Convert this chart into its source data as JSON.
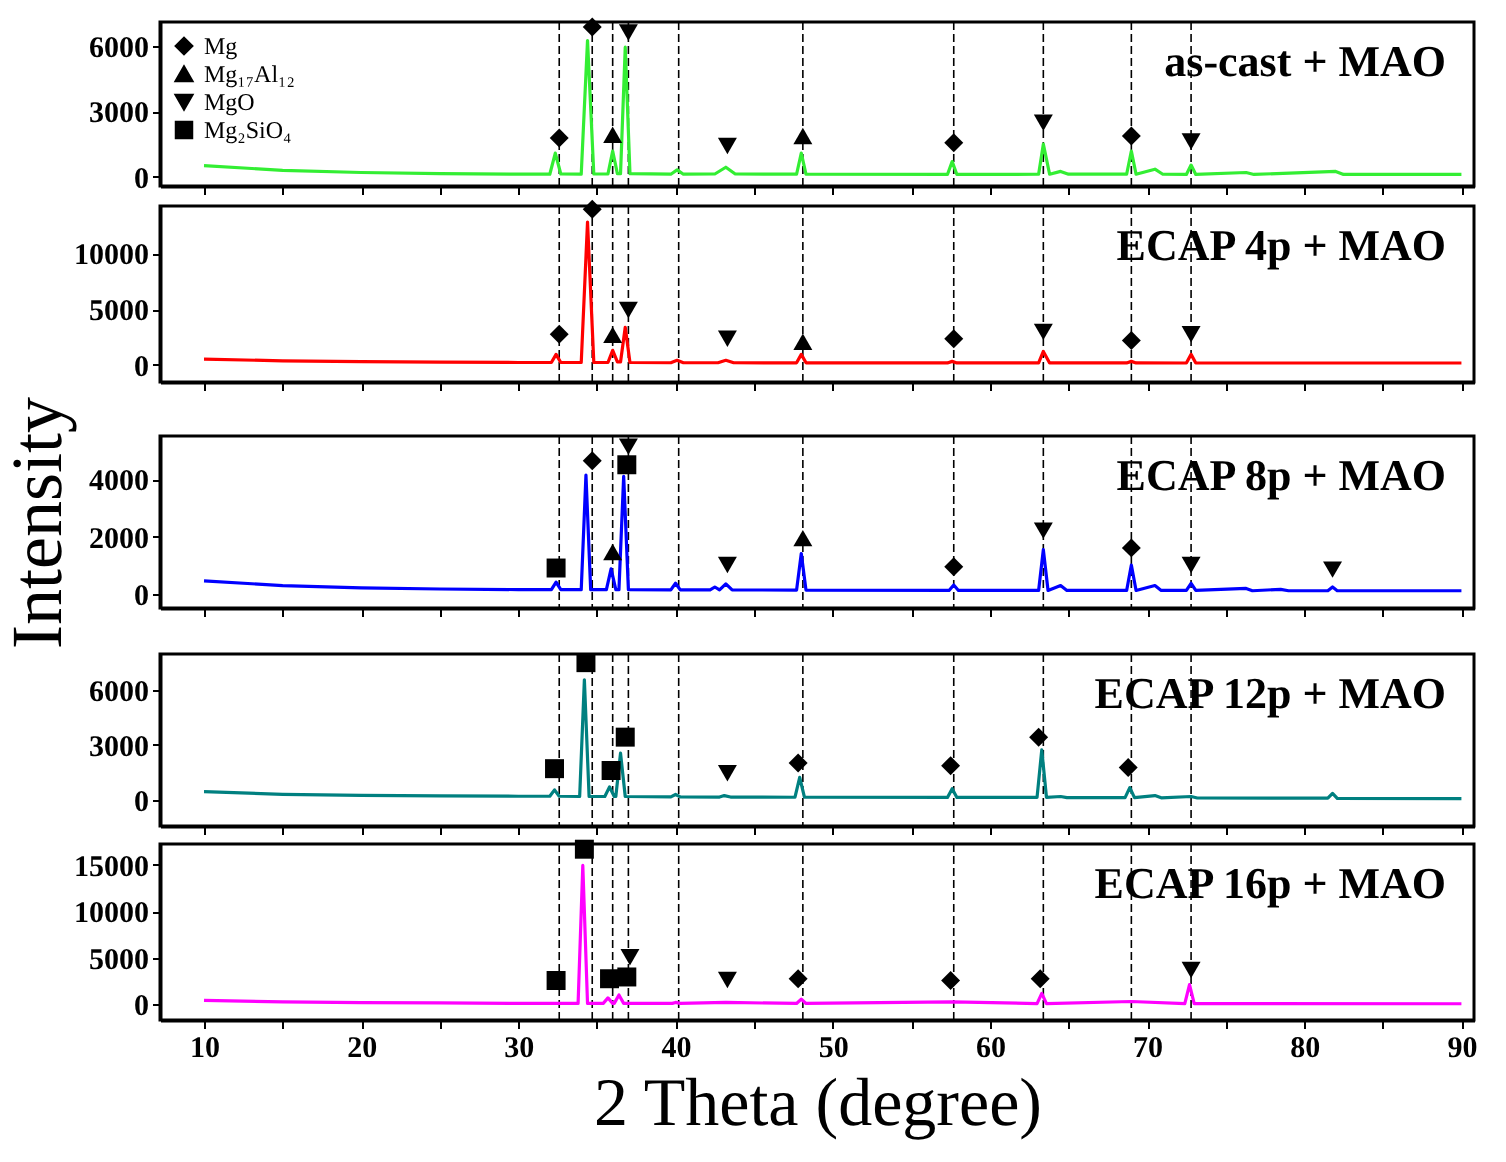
{
  "chart_data": [
    {
      "type": "line",
      "annotations": [
        "as-cast + MAO"
      ],
      "legend": "top left",
      "tick_labels": "y",
      "grid": false,
      "xlim": [
        7.2,
        90.8
      ],
      "xticks": [
        10,
        {
          "value": 15,
          "label": null
        },
        20,
        {
          "value": 25,
          "label": null
        },
        30,
        {
          "value": 35,
          "label": null
        },
        40,
        {
          "value": 45,
          "label": null
        },
        50,
        {
          "value": 55,
          "label": null
        },
        60,
        {
          "value": 65,
          "label": null
        },
        70,
        {
          "value": 75,
          "label": null
        },
        80,
        {
          "value": 85,
          "label": null
        },
        90
      ],
      "ylim": [
        -420,
        7100
      ],
      "yticks": [
        0,
        3000,
        6000
      ],
      "ref_lines": [
        {
          "axis": "x",
          "value": 32.6,
          "color": "#000000",
          "line_style": "dashed"
        },
        {
          "axis": "x",
          "value": 34.7,
          "color": "#000000",
          "line_style": "dashed"
        },
        {
          "axis": "x",
          "value": 36.0,
          "color": "#000000",
          "line_style": "dashed"
        },
        {
          "axis": "x",
          "value": 37.0,
          "color": "#000000",
          "line_style": "dashed"
        },
        {
          "axis": "x",
          "value": 40.2,
          "color": "#000000",
          "line_style": "dashed"
        },
        {
          "axis": "x",
          "value": 48.1,
          "color": "#000000",
          "line_style": "dashed"
        },
        {
          "axis": "x",
          "value": 57.7,
          "color": "#000000",
          "line_style": "dashed"
        },
        {
          "axis": "x",
          "value": 63.4,
          "color": "#000000",
          "line_style": "dashed"
        },
        {
          "axis": "x",
          "value": 69.0,
          "color": "#000000",
          "line_style": "dashed"
        },
        {
          "axis": "x",
          "value": 72.8,
          "color": "#000000",
          "line_style": "dashed"
        }
      ],
      "series": [
        {
          "color": "#33ee33",
          "x": [
            10,
            15,
            20,
            25,
            30,
            32.0,
            32.35,
            32.7,
            34.0,
            34.4,
            34.8,
            35.7,
            36.0,
            36.3,
            36.5,
            36.8,
            37.1,
            39.7,
            40.1,
            40.5,
            42.5,
            43.2,
            43.8,
            47.7,
            48.0,
            48.3,
            57.3,
            57.6,
            57.9,
            63.1,
            63.4,
            63.8,
            64.5,
            65,
            68.7,
            69.0,
            69.3,
            70.5,
            71,
            72.5,
            72.8,
            73.1,
            76.3,
            76.8,
            82,
            82.5,
            90
          ],
          "values": [
            510,
            300,
            200,
            150,
            120,
            120,
            1090,
            130,
            120,
            6250,
            130,
            130,
            1185,
            150,
            150,
            5945,
            150,
            120,
            320,
            120,
            130,
            440,
            130,
            120,
            1090,
            120,
            110,
            700,
            110,
            120,
            1500,
            120,
            250,
            120,
            120,
            1185,
            120,
            350,
            120,
            110,
            540,
            110,
            200,
            110,
            250,
            110,
            110
          ]
        },
        {
          "type": "scatter",
          "name": "Mg",
          "marker": "diamond",
          "color": "#000000",
          "x": [
            32.6,
            34.7,
            57.7,
            69.0
          ],
          "values": [
            1780,
            6870,
            1560,
            1870
          ]
        },
        {
          "type": "scatter",
          "name": "Mg₁₇Al₁₂",
          "marker": "triangle",
          "color": "#000000",
          "x": [
            36.0,
            48.1
          ],
          "values": [
            1930,
            1870
          ]
        },
        {
          "type": "scatter",
          "name": "MgO",
          "marker": "triangle-down",
          "color": "#000000",
          "x": [
            37.0,
            43.3,
            63.4,
            72.8
          ],
          "values": [
            6620,
            1410,
            2480,
            1620
          ]
        },
        {
          "type": "scatter",
          "name": "Mg₂SiO₄",
          "marker": "square",
          "color": "#000000"
        }
      ]
    },
    {
      "type": "line",
      "annotations": [
        "ECAP 4p + MAO"
      ],
      "tick_labels": "y",
      "grid": false,
      "xlim": [
        7.2,
        90.8
      ],
      "xticks": [
        10,
        {
          "value": 15,
          "label": null
        },
        20,
        {
          "value": 25,
          "label": null
        },
        30,
        {
          "value": 35,
          "label": null
        },
        40,
        {
          "value": 45,
          "label": null
        },
        50,
        {
          "value": 55,
          "label": null
        },
        60,
        {
          "value": 65,
          "label": null
        },
        70,
        {
          "value": 75,
          "label": null
        },
        80,
        {
          "value": 85,
          "label": null
        },
        90
      ],
      "ylim": [
        -1550,
        14250
      ],
      "yticks": [
        0,
        5000,
        10000
      ],
      "ref_lines": [
        {
          "axis": "x",
          "value": 32.6,
          "color": "#000000",
          "line_style": "dashed"
        },
        {
          "axis": "x",
          "value": 34.7,
          "color": "#000000",
          "line_style": "dashed"
        },
        {
          "axis": "x",
          "value": 36.0,
          "color": "#000000",
          "line_style": "dashed"
        },
        {
          "axis": "x",
          "value": 37.0,
          "color": "#000000",
          "line_style": "dashed"
        },
        {
          "axis": "x",
          "value": 40.2,
          "color": "#000000",
          "line_style": "dashed"
        },
        {
          "axis": "x",
          "value": 48.1,
          "color": "#000000",
          "line_style": "dashed"
        },
        {
          "axis": "x",
          "value": 57.7,
          "color": "#000000",
          "line_style": "dashed"
        },
        {
          "axis": "x",
          "value": 63.4,
          "color": "#000000",
          "line_style": "dashed"
        },
        {
          "axis": "x",
          "value": 69.0,
          "color": "#000000",
          "line_style": "dashed"
        },
        {
          "axis": "x",
          "value": 72.8,
          "color": "#000000",
          "line_style": "dashed"
        }
      ],
      "series": [
        {
          "color": "#ff0000",
          "x": [
            10,
            15,
            20,
            25,
            30,
            32.1,
            32.4,
            32.7,
            34.0,
            34.4,
            34.8,
            35.7,
            36.0,
            36.3,
            36.5,
            36.8,
            37.1,
            39.7,
            40.1,
            40.5,
            42.7,
            43.2,
            43.7,
            47.7,
            48.0,
            48.3,
            57.3,
            57.6,
            57.9,
            63.1,
            63.4,
            63.8,
            68.7,
            69.0,
            69.3,
            72.5,
            72.8,
            73.1,
            90
          ],
          "values": [
            510,
            350,
            280,
            230,
            200,
            200,
            930,
            200,
            200,
            12800,
            200,
            200,
            1290,
            250,
            250,
            3360,
            200,
            180,
            400,
            180,
            180,
            400,
            180,
            170,
            930,
            170,
            160,
            300,
            160,
            160,
            1190,
            160,
            160,
            300,
            160,
            155,
            930,
            155,
            155
          ]
        },
        {
          "type": "scatter",
          "marker": "diamond",
          "color": "#000000",
          "x": [
            32.6,
            34.7,
            57.7,
            69.0
          ],
          "values": [
            2740,
            13950,
            2330,
            2170
          ]
        },
        {
          "type": "scatter",
          "marker": "triangle",
          "color": "#000000",
          "x": [
            36.0,
            48.1
          ],
          "values": [
            2680,
            2060
          ]
        },
        {
          "type": "scatter",
          "marker": "triangle-down",
          "color": "#000000",
          "x": [
            37.0,
            43.3,
            63.4,
            72.8
          ],
          "values": [
            4910,
            2330,
            2950,
            2740
          ]
        }
      ]
    },
    {
      "type": "line",
      "annotations": [
        "ECAP 8p + MAO"
      ],
      "ylabel": "Intensity",
      "tick_labels": "y",
      "grid": false,
      "xlim": [
        7.2,
        90.8
      ],
      "xticks": [
        10,
        {
          "value": 15,
          "label": null
        },
        20,
        {
          "value": 25,
          "label": null
        },
        30,
        {
          "value": 35,
          "label": null
        },
        40,
        {
          "value": 45,
          "label": null
        },
        50,
        {
          "value": 55,
          "label": null
        },
        60,
        {
          "value": 65,
          "label": null
        },
        70,
        {
          "value": 75,
          "label": null
        },
        80,
        {
          "value": 85,
          "label": null
        },
        90
      ],
      "ylim": [
        -480,
        5500
      ],
      "yticks": [
        0,
        2000,
        4000
      ],
      "ref_lines": [
        {
          "axis": "x",
          "value": 32.6,
          "color": "#000000",
          "line_style": "dashed"
        },
        {
          "axis": "x",
          "value": 34.7,
          "color": "#000000",
          "line_style": "dashed"
        },
        {
          "axis": "x",
          "value": 36.0,
          "color": "#000000",
          "line_style": "dashed"
        },
        {
          "axis": "x",
          "value": 37.0,
          "color": "#000000",
          "line_style": "dashed"
        },
        {
          "axis": "x",
          "value": 40.2,
          "color": "#000000",
          "line_style": "dashed"
        },
        {
          "axis": "x",
          "value": 48.1,
          "color": "#000000",
          "line_style": "dashed"
        },
        {
          "axis": "x",
          "value": 57.7,
          "color": "#000000",
          "line_style": "dashed"
        },
        {
          "axis": "x",
          "value": 63.4,
          "color": "#000000",
          "line_style": "dashed"
        },
        {
          "axis": "x",
          "value": 69.0,
          "color": "#000000",
          "line_style": "dashed"
        },
        {
          "axis": "x",
          "value": 72.8,
          "color": "#000000",
          "line_style": "dashed"
        }
      ],
      "series": [
        {
          "color": "#0000ff",
          "x": [
            10,
            15,
            20,
            25,
            30,
            32.1,
            32.4,
            32.7,
            34.0,
            34.3,
            34.6,
            35.6,
            35.9,
            36.2,
            36.4,
            36.7,
            37.0,
            39.7,
            40.0,
            40.3,
            42.2,
            42.5,
            42.8,
            43.2,
            43.6,
            47.7,
            48.0,
            48.3,
            57.4,
            57.7,
            58.0,
            63.1,
            63.4,
            63.7,
            64.5,
            64.9,
            68.7,
            69.0,
            69.3,
            70.5,
            70.9,
            72.5,
            72.8,
            73.1,
            76.3,
            76.7,
            78.5,
            79,
            81.5,
            81.8,
            82.1,
            90
          ],
          "values": [
            460,
            300,
            220,
            180,
            160,
            160,
            420,
            160,
            160,
            4140,
            160,
            160,
            880,
            160,
            160,
            4100,
            160,
            150,
            380,
            150,
            150,
            250,
            150,
            360,
            150,
            140,
            1415,
            140,
            130,
            320,
            130,
            130,
            1550,
            130,
            300,
            130,
            130,
            1015,
            130,
            300,
            130,
            130,
            380,
            130,
            200,
            120,
            170,
            120,
            120,
            250,
            120,
            120
          ]
        },
        {
          "type": "scatter",
          "marker": "diamond",
          "color": "#000000",
          "x": [
            34.7,
            57.7,
            69.0
          ],
          "values": [
            4640,
            955,
            1610
          ]
        },
        {
          "type": "scatter",
          "marker": "triangle",
          "color": "#000000",
          "x": [
            36.0,
            48.1
          ],
          "values": [
            1470,
            1950
          ]
        },
        {
          "type": "scatter",
          "marker": "triangle-down",
          "color": "#000000",
          "x": [
            37.0,
            43.3,
            63.4,
            72.8,
            81.8
          ],
          "values": [
            5130,
            1015,
            2210,
            1015,
            855
          ]
        },
        {
          "type": "scatter",
          "marker": "square",
          "color": "#000000",
          "x": [
            32.4,
            36.9
          ],
          "values": [
            910,
            4500
          ]
        }
      ]
    },
    {
      "type": "line",
      "annotations": [
        "ECAP 12p + MAO"
      ],
      "tick_labels": "y",
      "grid": false,
      "xlim": [
        7.2,
        90.8
      ],
      "xticks": [
        10,
        {
          "value": 15,
          "label": null
        },
        20,
        {
          "value": 25,
          "label": null
        },
        30,
        {
          "value": 35,
          "label": null
        },
        40,
        {
          "value": 45,
          "label": null
        },
        50,
        {
          "value": 55,
          "label": null
        },
        60,
        {
          "value": 65,
          "label": null
        },
        70,
        {
          "value": 75,
          "label": null
        },
        80,
        {
          "value": 85,
          "label": null
        },
        90
      ],
      "ylim": [
        -1400,
        7930
      ],
      "yticks": [
        0,
        3000,
        6000
      ],
      "ref_lines": [
        {
          "axis": "x",
          "value": 32.6,
          "color": "#000000",
          "line_style": "dashed"
        },
        {
          "axis": "x",
          "value": 34.7,
          "color": "#000000",
          "line_style": "dashed"
        },
        {
          "axis": "x",
          "value": 36.0,
          "color": "#000000",
          "line_style": "dashed"
        },
        {
          "axis": "x",
          "value": 37.0,
          "color": "#000000",
          "line_style": "dashed"
        },
        {
          "axis": "x",
          "value": 40.2,
          "color": "#000000",
          "line_style": "dashed"
        },
        {
          "axis": "x",
          "value": 48.1,
          "color": "#000000",
          "line_style": "dashed"
        },
        {
          "axis": "x",
          "value": 57.7,
          "color": "#000000",
          "line_style": "dashed"
        },
        {
          "axis": "x",
          "value": 63.4,
          "color": "#000000",
          "line_style": "dashed"
        },
        {
          "axis": "x",
          "value": 69.0,
          "color": "#000000",
          "line_style": "dashed"
        },
        {
          "axis": "x",
          "value": 72.8,
          "color": "#000000",
          "line_style": "dashed"
        }
      ],
      "series": [
        {
          "color": "#008080",
          "x": [
            10,
            15,
            20,
            25,
            30,
            32.0,
            32.3,
            32.6,
            33.9,
            34.2,
            34.5,
            35.5,
            35.8,
            36.1,
            36.2,
            36.5,
            36.8,
            39.7,
            40.0,
            40.3,
            42.8,
            43.1,
            43.5,
            47.6,
            47.9,
            48.2,
            57.3,
            57.6,
            57.9,
            63.0,
            63.3,
            63.6,
            64.5,
            64.9,
            68.6,
            68.9,
            69.2,
            70.5,
            70.9,
            72.8,
            73.2,
            81.5,
            81.8,
            82.1,
            90
          ],
          "values": [
            470,
            320,
            260,
            230,
            215,
            215,
            560,
            215,
            200,
            6530,
            200,
            200,
            720,
            200,
            200,
            2550,
            200,
            180,
            310,
            180,
            170,
            250,
            170,
            160,
            1240,
            160,
            150,
            620,
            150,
            150,
            2730,
            150,
            200,
            140,
            140,
            680,
            140,
            250,
            130,
            200,
            120,
            110,
            370,
            100,
            90
          ]
        },
        {
          "type": "scatter",
          "marker": "diamond",
          "color": "#000000",
          "x": [
            47.8,
            57.5,
            63.1,
            68.8
          ],
          "values": [
            2020,
            1870,
            3420,
            1770
          ]
        },
        {
          "type": "scatter",
          "marker": "triangle-down",
          "color": "#000000",
          "x": [
            43.3
          ],
          "values": [
            1460
          ]
        },
        {
          "type": "scatter",
          "marker": "square",
          "color": "#000000",
          "x": [
            32.3,
            34.3,
            35.9,
            36.8
          ],
          "values": [
            1710,
            7460,
            1610,
            3420
          ]
        }
      ]
    },
    {
      "type": "line",
      "annotations": [
        "ECAP 16p + MAO"
      ],
      "xlabel": "2 Theta (degree)",
      "grid": false,
      "xlim": [
        7.2,
        90.8
      ],
      "xticks": [
        10,
        {
          "value": 15,
          "label": null
        },
        20,
        {
          "value": 25,
          "label": null
        },
        30,
        {
          "value": 35,
          "label": null
        },
        40,
        {
          "value": 45,
          "label": null
        },
        50,
        {
          "value": 55,
          "label": null
        },
        60,
        {
          "value": 65,
          "label": null
        },
        70,
        {
          "value": 75,
          "label": null
        },
        80,
        {
          "value": 85,
          "label": null
        },
        90
      ],
      "ylim": [
        -1690,
        17250
      ],
      "yticks": [
        0,
        5000,
        10000,
        15000
      ],
      "ref_lines": [
        {
          "axis": "x",
          "value": 32.6,
          "color": "#000000",
          "line_style": "dashed"
        },
        {
          "axis": "x",
          "value": 34.7,
          "color": "#000000",
          "line_style": "dashed"
        },
        {
          "axis": "x",
          "value": 36.0,
          "color": "#000000",
          "line_style": "dashed"
        },
        {
          "axis": "x",
          "value": 37.0,
          "color": "#000000",
          "line_style": "dashed"
        },
        {
          "axis": "x",
          "value": 40.2,
          "color": "#000000",
          "line_style": "dashed"
        },
        {
          "axis": "x",
          "value": 48.1,
          "color": "#000000",
          "line_style": "dashed"
        },
        {
          "axis": "x",
          "value": 57.7,
          "color": "#000000",
          "line_style": "dashed"
        },
        {
          "axis": "x",
          "value": 63.4,
          "color": "#000000",
          "line_style": "dashed"
        },
        {
          "axis": "x",
          "value": 69.0,
          "color": "#000000",
          "line_style": "dashed"
        },
        {
          "axis": "x",
          "value": 72.8,
          "color": "#000000",
          "line_style": "dashed"
        }
      ],
      "series": [
        {
          "color": "#ff00ff",
          "x": [
            10,
            15,
            20,
            25,
            30,
            33.8,
            34.1,
            34.4,
            35.4,
            35.7,
            36.0,
            36.1,
            36.4,
            36.7,
            39.8,
            40.0,
            40.3,
            43.2,
            47.7,
            48.0,
            48.3,
            57.6,
            63.0,
            63.3,
            63.6,
            69.0,
            72.4,
            72.7,
            73.0,
            90
          ],
          "values": [
            430,
            250,
            180,
            150,
            100,
            100,
            14940,
            100,
            100,
            690,
            100,
            100,
            1000,
            100,
            100,
            200,
            100,
            200,
            90,
            560,
            90,
            250,
            80,
            1180,
            80,
            300,
            70,
            2120,
            70,
            60
          ]
        },
        {
          "type": "scatter",
          "marker": "diamond",
          "color": "#000000",
          "x": [
            47.8,
            57.5,
            63.2
          ],
          "values": [
            2750,
            2560,
            2750
          ]
        },
        {
          "type": "scatter",
          "marker": "triangle-down",
          "color": "#000000",
          "x": [
            37.1,
            43.3,
            72.8
          ],
          "values": [
            5060,
            2620,
            3690
          ]
        },
        {
          "type": "scatter",
          "marker": "square",
          "color": "#000000",
          "x": [
            32.4,
            34.2,
            35.8,
            36.9
          ],
          "values": [
            2560,
            16690,
            2750,
            2940
          ]
        }
      ]
    }
  ]
}
